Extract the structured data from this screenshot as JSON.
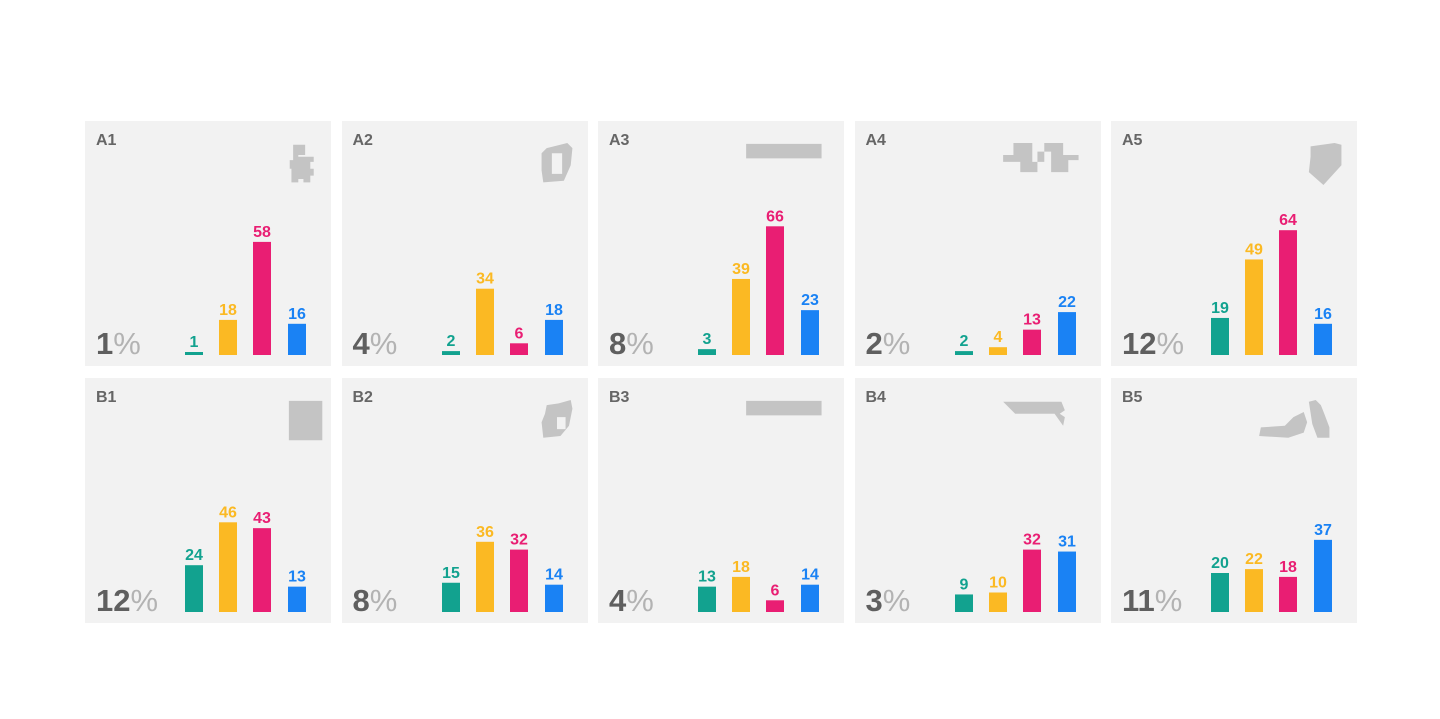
{
  "colors": [
    "#12a28f",
    "#fbb923",
    "#e91e73",
    "#1a82f4"
  ],
  "shape_color": "#c4c4c4",
  "percent_sign": "%",
  "chart_data": [
    {
      "type": "bar",
      "title": "A1",
      "share": "1",
      "shape": "building-icon",
      "values": [
        1,
        18,
        58,
        16
      ]
    },
    {
      "type": "bar",
      "title": "A2",
      "share": "4",
      "shape": "ring-shape-icon",
      "values": [
        2,
        34,
        6,
        18
      ]
    },
    {
      "type": "bar",
      "title": "A3",
      "share": "8",
      "shape": "long-rect-icon",
      "values": [
        3,
        39,
        66,
        23
      ]
    },
    {
      "type": "bar",
      "title": "A4",
      "share": "2",
      "shape": "step-shape-icon",
      "values": [
        2,
        4,
        13,
        22
      ]
    },
    {
      "type": "bar",
      "title": "A5",
      "share": "12",
      "shape": "pentagon-icon",
      "values": [
        19,
        49,
        64,
        16
      ]
    },
    {
      "type": "bar",
      "title": "B1",
      "share": "12",
      "shape": "square-icon",
      "values": [
        24,
        46,
        43,
        13
      ]
    },
    {
      "type": "bar",
      "title": "B2",
      "share": "8",
      "shape": "rock-hole-icon",
      "values": [
        15,
        36,
        32,
        14
      ]
    },
    {
      "type": "bar",
      "title": "B3",
      "share": "4",
      "shape": "long-rect-icon",
      "values": [
        13,
        18,
        6,
        14
      ]
    },
    {
      "type": "bar",
      "title": "B4",
      "share": "3",
      "shape": "flag-shape-icon",
      "values": [
        9,
        10,
        32,
        31
      ]
    },
    {
      "type": "bar",
      "title": "B5",
      "share": "11",
      "shape": "hand-shape-icon",
      "values": [
        20,
        22,
        18,
        37
      ]
    }
  ]
}
